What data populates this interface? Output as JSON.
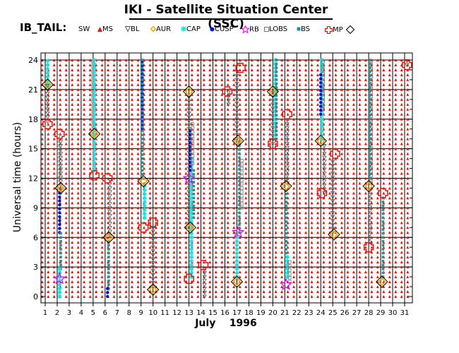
{
  "title": "IKI - Satellite Situation Center (SSC)",
  "legend": {
    "name": "IB_TAIL:",
    "items": [
      {
        "label": "SW",
        "symbol": "sw",
        "color": "#e8140c"
      },
      {
        "label": "MS",
        "symbol": "ms",
        "color": "#666666"
      },
      {
        "label": "BL",
        "symbol": "bl",
        "color": "#f0a800"
      },
      {
        "label": "AUR",
        "symbol": "aur",
        "color": "#1ee0e0"
      },
      {
        "label": "CAP",
        "symbol": "cap",
        "color": "#0010d8"
      },
      {
        "label": "CUSP",
        "symbol": "cusp",
        "color": "#e000e0"
      },
      {
        "label": "RB",
        "symbol": "rb",
        "color": "#777777"
      },
      {
        "label": "LOBS",
        "symbol": "lobs",
        "color": "#2a8f8f"
      },
      {
        "label": "BS",
        "symbol": "bs",
        "color": "#e8140c"
      },
      {
        "label": "MP",
        "symbol": "mp",
        "color": "#000000"
      }
    ]
  },
  "chart_data": {
    "type": "scatter",
    "title": "IKI - Satellite Situation Center (SSC)",
    "xlabel": "July    1996",
    "ylabel": "Universal time (hours)",
    "xlim": [
      1,
      31
    ],
    "ylim": [
      0,
      24
    ],
    "x_ticks": [
      "1",
      "2",
      "3",
      "4",
      "5",
      "6",
      "7",
      "8",
      "9",
      "10",
      "11",
      "12",
      "13",
      "14",
      "15",
      "16",
      "17",
      "18",
      "19",
      "20",
      "21",
      "22",
      "23",
      "24",
      "25",
      "26",
      "27",
      "28",
      "29",
      "30",
      "31"
    ],
    "y_ticks": [
      "0",
      "3",
      "6",
      "9",
      "12",
      "15",
      "18",
      "21",
      "24"
    ],
    "background_sw_days": [
      1,
      2,
      3,
      4,
      5,
      6,
      7,
      8,
      9,
      10,
      11,
      12,
      13,
      14,
      15,
      16,
      17,
      18,
      19,
      20,
      21,
      22,
      23,
      24,
      25,
      26,
      27,
      28,
      29,
      30,
      31
    ],
    "segments": [
      {
        "region": "AUR",
        "x": 1.2,
        "y0": 21.5,
        "y1": 24
      },
      {
        "region": "BL",
        "x": 1.2,
        "y0": 17.8,
        "y1": 21.5
      },
      {
        "region": "LOBS",
        "x": 2.1,
        "y0": 11.5,
        "y1": 16.3
      },
      {
        "region": "BL",
        "x": 2.3,
        "y0": 10.5,
        "y1": 16.0
      },
      {
        "region": "CAP",
        "x": 2.2,
        "y0": 6.5,
        "y1": 10.5
      },
      {
        "region": "BS",
        "x": 2.3,
        "y0": 2.8,
        "y1": 6.5
      },
      {
        "region": "AUR",
        "x": 2.2,
        "y0": 0,
        "y1": 2.8
      },
      {
        "region": "LOBS",
        "x": 5.0,
        "y0": 17.0,
        "y1": 24
      },
      {
        "region": "AUR",
        "x": 5.1,
        "y0": 12.8,
        "y1": 24
      },
      {
        "region": "BL",
        "x": 6.4,
        "y0": 6.2,
        "y1": 11.8
      },
      {
        "region": "BS",
        "x": 6.3,
        "y0": 0.8,
        "y1": 5.8
      },
      {
        "region": "CAP",
        "x": 6.2,
        "y0": 0,
        "y1": 0.8
      },
      {
        "region": "CAP",
        "x": 9.1,
        "y0": 17.0,
        "y1": 24
      },
      {
        "region": "BS",
        "x": 9.1,
        "y0": 12.0,
        "y1": 24
      },
      {
        "region": "LOBS",
        "x": 9.1,
        "y0": 15.0,
        "y1": 19.0
      },
      {
        "region": "AUR",
        "x": 9.3,
        "y0": 8.0,
        "y1": 11.5
      },
      {
        "region": "BL",
        "x": 10.0,
        "y0": 1.0,
        "y1": 7.2
      },
      {
        "region": "BL",
        "x": 13.0,
        "y0": 7.0,
        "y1": 20.5
      },
      {
        "region": "AUR",
        "x": 13.2,
        "y0": 2.0,
        "y1": 14.0
      },
      {
        "region": "CAP",
        "x": 13.1,
        "y0": 12.8,
        "y1": 17.0
      },
      {
        "region": "LOBS",
        "x": 13.3,
        "y0": 13.5,
        "y1": 17.5
      },
      {
        "region": "BS",
        "x": 13.4,
        "y0": 8.0,
        "y1": 13.0
      },
      {
        "region": "BL",
        "x": 14.3,
        "y0": 0,
        "y1": 3.0
      },
      {
        "region": "BL",
        "x": 16.3,
        "y0": 19.5,
        "y1": 20.8
      },
      {
        "region": "BL",
        "x": 17.0,
        "y0": 16.0,
        "y1": 23.0
      },
      {
        "region": "BS",
        "x": 17.2,
        "y0": 6.5,
        "y1": 16.0
      },
      {
        "region": "LOBS",
        "x": 17.4,
        "y0": 9.0,
        "y1": 14.0
      },
      {
        "region": "AUR",
        "x": 17.0,
        "y0": 2.0,
        "y1": 6.0
      },
      {
        "region": "BL",
        "x": 20.0,
        "y0": 15.5,
        "y1": 20.8
      },
      {
        "region": "AUR",
        "x": 20.2,
        "y0": 16.0,
        "y1": 24
      },
      {
        "region": "BS",
        "x": 20.3,
        "y0": 16.0,
        "y1": 24
      },
      {
        "region": "BL",
        "x": 21.2,
        "y0": 11.5,
        "y1": 18.0
      },
      {
        "region": "BS",
        "x": 21.1,
        "y0": 4.0,
        "y1": 11.0
      },
      {
        "region": "AUR",
        "x": 21.2,
        "y0": 2.0,
        "y1": 4.0
      },
      {
        "region": "LOBS",
        "x": 21.4,
        "y0": 1.5,
        "y1": 3.8
      },
      {
        "region": "AUR",
        "x": 24.1,
        "y0": 16.0,
        "y1": 24
      },
      {
        "region": "LOBS",
        "x": 24.2,
        "y0": 19.0,
        "y1": 24
      },
      {
        "region": "CAP",
        "x": 24.0,
        "y0": 18.5,
        "y1": 22.5
      },
      {
        "region": "BL",
        "x": 24.3,
        "y0": 10.5,
        "y1": 15.5
      },
      {
        "region": "BL",
        "x": 25.0,
        "y0": 6.5,
        "y1": 14.0
      },
      {
        "region": "BL",
        "x": 28.1,
        "y0": 5.5,
        "y1": 11.0
      },
      {
        "region": "LOBS",
        "x": 28.2,
        "y0": 11.5,
        "y1": 24
      },
      {
        "region": "BS",
        "x": 28.1,
        "y0": 12.0,
        "y1": 24
      },
      {
        "region": "BS",
        "x": 29.2,
        "y0": 2.0,
        "y1": 10.0
      },
      {
        "region": "BL",
        "x": 31.2,
        "y0": 23.5,
        "y1": 24
      }
    ],
    "markers": [
      {
        "type": "MP",
        "x": 1.2,
        "y": 21.5
      },
      {
        "type": "BS",
        "x": 1.2,
        "y": 17.5
      },
      {
        "type": "BS",
        "x": 2.2,
        "y": 16.5
      },
      {
        "type": "MP",
        "x": 2.3,
        "y": 11.0
      },
      {
        "type": "RB",
        "x": 2.2,
        "y": 1.8
      },
      {
        "type": "MP",
        "x": 5.1,
        "y": 16.5
      },
      {
        "type": "BS",
        "x": 5.1,
        "y": 12.3
      },
      {
        "type": "BS",
        "x": 6.2,
        "y": 12.0
      },
      {
        "type": "MP",
        "x": 6.3,
        "y": 6.0
      },
      {
        "type": "MP",
        "x": 9.2,
        "y": 11.7
      },
      {
        "type": "BS",
        "x": 9.2,
        "y": 7.0
      },
      {
        "type": "BS",
        "x": 10.0,
        "y": 7.5
      },
      {
        "type": "MP",
        "x": 10.0,
        "y": 0.7
      },
      {
        "type": "MP",
        "x": 13.0,
        "y": 20.8
      },
      {
        "type": "RB",
        "x": 13.0,
        "y": 12.0
      },
      {
        "type": "MP",
        "x": 13.1,
        "y": 7.0
      },
      {
        "type": "BS",
        "x": 13.0,
        "y": 1.8
      },
      {
        "type": "BS",
        "x": 14.2,
        "y": 3.2
      },
      {
        "type": "BS",
        "x": 16.2,
        "y": 20.8
      },
      {
        "type": "BS",
        "x": 17.3,
        "y": 23.2
      },
      {
        "type": "MP",
        "x": 17.1,
        "y": 15.8
      },
      {
        "type": "RB",
        "x": 17.1,
        "y": 6.5
      },
      {
        "type": "MP",
        "x": 17.0,
        "y": 1.5
      },
      {
        "type": "MP",
        "x": 20.0,
        "y": 20.8
      },
      {
        "type": "BS",
        "x": 20.0,
        "y": 15.5
      },
      {
        "type": "BS",
        "x": 21.2,
        "y": 18.5
      },
      {
        "type": "MP",
        "x": 21.1,
        "y": 11.2
      },
      {
        "type": "RB",
        "x": 21.1,
        "y": 1.2
      },
      {
        "type": "MP",
        "x": 24.0,
        "y": 15.8
      },
      {
        "type": "BS",
        "x": 24.1,
        "y": 10.5
      },
      {
        "type": "BS",
        "x": 25.2,
        "y": 14.5
      },
      {
        "type": "MP",
        "x": 25.1,
        "y": 6.3
      },
      {
        "type": "MP",
        "x": 28.0,
        "y": 11.2
      },
      {
        "type": "BS",
        "x": 28.0,
        "y": 5.0
      },
      {
        "type": "BS",
        "x": 29.2,
        "y": 10.5
      },
      {
        "type": "MP",
        "x": 29.1,
        "y": 1.5
      },
      {
        "type": "BS",
        "x": 31.2,
        "y": 23.5
      }
    ]
  }
}
